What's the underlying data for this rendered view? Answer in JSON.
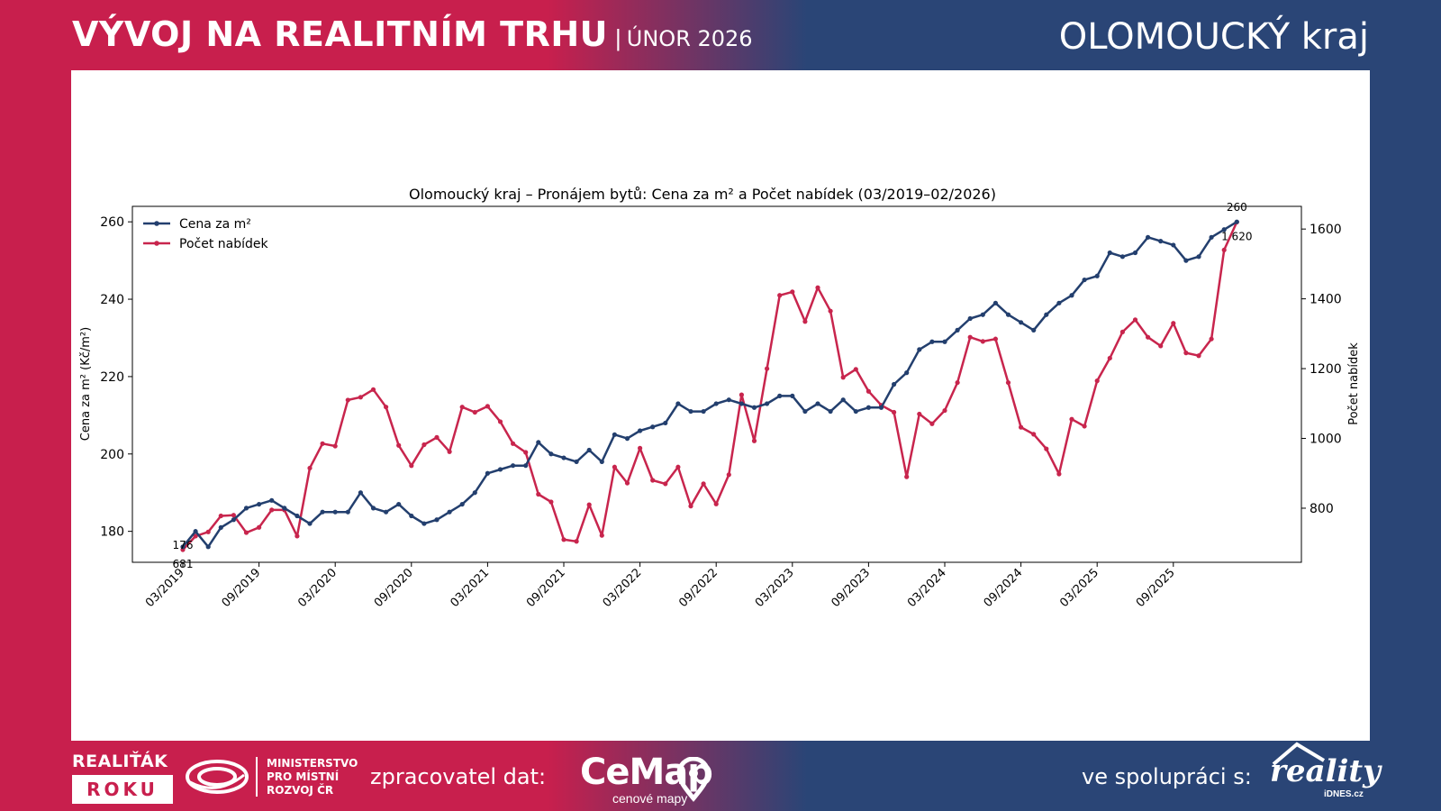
{
  "header": {
    "title": "VÝVOJ NA REALITNÍM TRHU",
    "separator": "|",
    "subtitle": "ÚNOR 2026",
    "region": "OLOMOUCKÝ kraj"
  },
  "footer": {
    "award_line1": "REALIŤÁK",
    "award_line2": "ROKU",
    "ministry": [
      "MINISTERSTVO",
      "PRO MÍSTNÍ",
      "ROZVOJ ČR"
    ],
    "processor_label": "zpracovatel dat:",
    "cemap_name": "CeMap",
    "cemap_sub": "cenové mapy",
    "cooperation_label": "ve spolupráci s:",
    "reality_name": "reality",
    "reality_sub": "iDNES.cz"
  },
  "colors": {
    "brand_red": "#c81f4d",
    "brand_blue": "#2a4576",
    "series_price": "#233f6e",
    "series_count": "#c8254d"
  },
  "chart_data": {
    "type": "line",
    "title": "Olomoucký kraj – Pronájem bytů: Cena za m² a Počet nabídek (03/2019–02/2026)",
    "xlabel": "",
    "ylabel": "Cena za m² (Kč/m²)",
    "y2label": "Počet nabídek",
    "ylim": [
      172,
      264
    ],
    "y2lim": [
      645,
      1665
    ],
    "yticks": [
      180,
      200,
      220,
      240,
      260
    ],
    "y2ticks": [
      800,
      1000,
      1200,
      1400,
      1600
    ],
    "grid": false,
    "legend": "top-left",
    "x_tick_labels": [
      "03/2019",
      "09/2019",
      "03/2020",
      "09/2020",
      "03/2021",
      "09/2021",
      "03/2022",
      "09/2022",
      "03/2023",
      "09/2023",
      "03/2024",
      "09/2024",
      "03/2025",
      "09/2025"
    ],
    "x": [
      "03/2019",
      "04/2019",
      "05/2019",
      "06/2019",
      "07/2019",
      "08/2019",
      "09/2019",
      "10/2019",
      "11/2019",
      "12/2019",
      "01/2020",
      "02/2020",
      "03/2020",
      "04/2020",
      "05/2020",
      "06/2020",
      "07/2020",
      "08/2020",
      "09/2020",
      "10/2020",
      "11/2020",
      "12/2020",
      "01/2021",
      "02/2021",
      "03/2021",
      "04/2021",
      "05/2021",
      "06/2021",
      "07/2021",
      "08/2021",
      "09/2021",
      "10/2021",
      "11/2021",
      "12/2021",
      "01/2022",
      "02/2022",
      "03/2022",
      "04/2022",
      "05/2022",
      "06/2022",
      "07/2022",
      "08/2022",
      "09/2022",
      "10/2022",
      "11/2022",
      "12/2022",
      "01/2023",
      "02/2023",
      "03/2023",
      "04/2023",
      "05/2023",
      "06/2023",
      "07/2023",
      "08/2023",
      "09/2023",
      "10/2023",
      "11/2023",
      "12/2023",
      "01/2024",
      "02/2024",
      "03/2024",
      "04/2024",
      "05/2024",
      "06/2024",
      "07/2024",
      "08/2024",
      "09/2024",
      "10/2024",
      "11/2024",
      "12/2024",
      "01/2025",
      "02/2025",
      "03/2025",
      "04/2025",
      "05/2025",
      "06/2025",
      "07/2025",
      "08/2025",
      "09/2025",
      "10/2025",
      "11/2025",
      "12/2025",
      "01/2026",
      "02/2026"
    ],
    "series": [
      {
        "name": "Cena za m²",
        "axis": "left",
        "first_label": "176",
        "last_label": "260",
        "values": [
          176,
          180,
          176,
          181,
          183,
          186,
          187,
          188,
          186,
          184,
          182,
          185,
          185,
          185,
          190,
          186,
          185,
          187,
          184,
          182,
          183,
          185,
          187,
          190,
          195,
          196,
          197,
          197,
          203,
          200,
          199,
          198,
          201,
          198,
          205,
          204,
          206,
          207,
          208,
          213,
          211,
          211,
          213,
          214,
          213,
          212,
          213,
          215,
          215,
          211,
          213,
          211,
          214,
          211,
          212,
          212,
          218,
          221,
          227,
          229,
          229,
          232,
          235,
          236,
          239,
          236,
          234,
          232,
          236,
          239,
          241,
          245,
          246,
          252,
          251,
          252,
          256,
          255,
          254,
          250,
          251,
          256,
          258,
          260
        ]
      },
      {
        "name": "Počet nabídek",
        "axis": "right",
        "first_label": "681",
        "last_label": "1 620",
        "values": [
          681,
          720,
          732,
          778,
          780,
          730,
          745,
          795,
          795,
          720,
          915,
          985,
          978,
          1110,
          1118,
          1140,
          1090,
          980,
          922,
          982,
          1003,
          962,
          1090,
          1075,
          1092,
          1048,
          985,
          960,
          840,
          818,
          710,
          705,
          810,
          722,
          918,
          872,
          972,
          880,
          870,
          918,
          806,
          870,
          812,
          896,
          1125,
          993,
          1200,
          1410,
          1420,
          1335,
          1432,
          1365,
          1175,
          1198,
          1135,
          1095,
          1075,
          890,
          1070,
          1042,
          1080,
          1160,
          1290,
          1278,
          1285,
          1160,
          1032,
          1012,
          970,
          898,
          1055,
          1035,
          1165,
          1230,
          1305,
          1340,
          1290,
          1265,
          1330,
          1245,
          1237,
          1285,
          1540,
          1620
        ]
      }
    ]
  }
}
